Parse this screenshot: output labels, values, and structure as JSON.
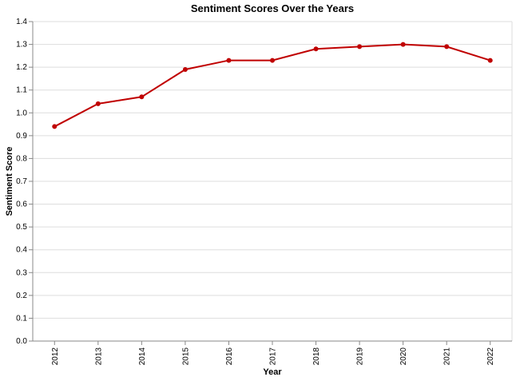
{
  "chart_data": {
    "type": "line",
    "title": "Sentiment Scores Over the Years",
    "xlabel": "Year",
    "ylabel": "Sentiment Score",
    "categories": [
      "2012",
      "2013",
      "2014",
      "2015",
      "2016",
      "2017",
      "2018",
      "2019",
      "2020",
      "2021",
      "2022"
    ],
    "series": [
      {
        "values": [
          0.94,
          1.04,
          1.07,
          1.19,
          1.23,
          1.23,
          1.28,
          1.29,
          1.3,
          1.29,
          1.23
        ]
      }
    ],
    "ylim": [
      0,
      1.4
    ],
    "yticks": [
      "0.0",
      "0.1",
      "0.2",
      "0.3",
      "0.4",
      "0.5",
      "0.6",
      "0.7",
      "0.8",
      "0.9",
      "1.0",
      "1.1",
      "1.2",
      "1.3",
      "1.4"
    ],
    "grid": true,
    "line_color": "#c00000",
    "grid_color": "#dddddd",
    "axis_color": "#888888"
  }
}
